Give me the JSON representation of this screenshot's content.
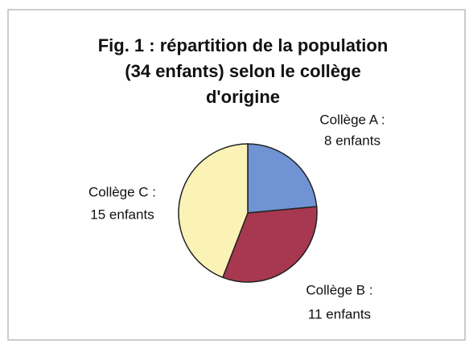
{
  "chart_data": {
    "type": "pie",
    "title": [
      "Fig. 1 : répartition de la population",
      "(34 enfants) selon le collège",
      "d'origine"
    ],
    "categories": [
      "Collège A :",
      "Collège B :",
      "Collège C :"
    ],
    "values": [
      8,
      11,
      15
    ],
    "value_labels": [
      "8 enfants",
      "11 enfants",
      "15 enfants"
    ],
    "colors": [
      "#6f93d3",
      "#a8384f",
      "#fbf3b6"
    ]
  }
}
